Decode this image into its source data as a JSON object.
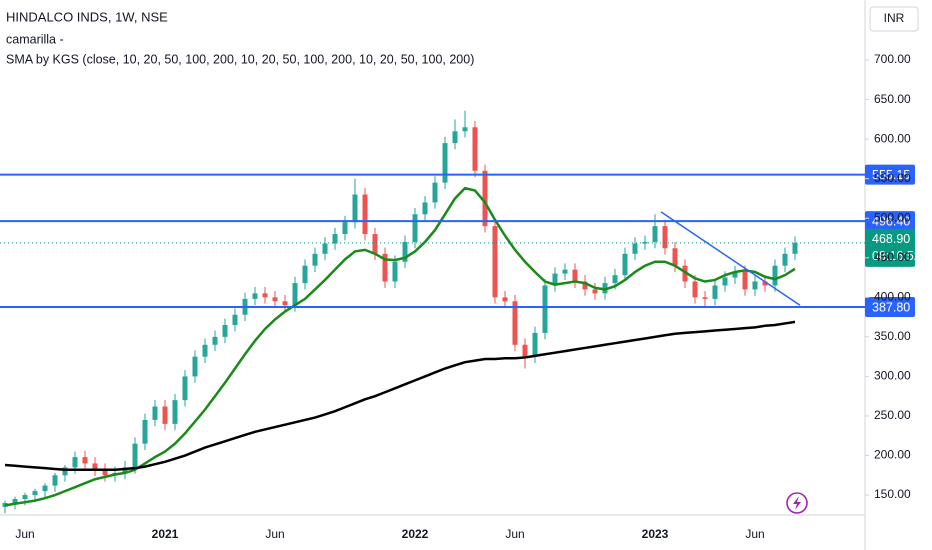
{
  "chart_data": {
    "type": "candlestick",
    "title": "HINDALCO INDS, 1W, NSE",
    "indicators": [
      "camarilla -",
      "SMA by KGS (close, 10, 20, 50, 100, 200, 10, 20, 50, 100, 200, 10, 20, 50, 100, 200)"
    ],
    "currency": "INR",
    "categories": [
      null,
      null,
      "Jun",
      null,
      null,
      null,
      null,
      null,
      null,
      null,
      null,
      null,
      null,
      null,
      null,
      null,
      "2021",
      null,
      null,
      null,
      null,
      null,
      null,
      null,
      null,
      null,
      null,
      "Jun",
      null,
      null,
      null,
      null,
      null,
      null,
      null,
      null,
      null,
      null,
      null,
      null,
      null,
      "2022",
      null,
      null,
      null,
      null,
      null,
      null,
      null,
      null,
      null,
      "Jun",
      null,
      null,
      null,
      null,
      null,
      null,
      null,
      null,
      null,
      null,
      null,
      null,
      null,
      "2023",
      null,
      null,
      null,
      null,
      null,
      null,
      null,
      null,
      null,
      "Jun",
      null,
      null,
      null,
      null
    ],
    "open": [
      135,
      140,
      145,
      150,
      155,
      162,
      175,
      185,
      198,
      190,
      182,
      175,
      178,
      185,
      215,
      245,
      262,
      240,
      270,
      300,
      325,
      340,
      350,
      365,
      378,
      398,
      405,
      400,
      395,
      390,
      418,
      440,
      455,
      468,
      480,
      495,
      530,
      480,
      455,
      420,
      445,
      470,
      505,
      520,
      545,
      595,
      610,
      615,
      560,
      490,
      400,
      395,
      340,
      325,
      355,
      415,
      430,
      435,
      420,
      410,
      405,
      418,
      428,
      455,
      468,
      470,
      490,
      462,
      440,
      420,
      400,
      398,
      415,
      425,
      432,
      410,
      420,
      415,
      440,
      455
    ],
    "high": [
      143,
      148,
      153,
      158,
      165,
      178,
      188,
      205,
      206,
      198,
      190,
      186,
      193,
      223,
      253,
      270,
      270,
      278,
      308,
      333,
      348,
      358,
      373,
      386,
      406,
      413,
      413,
      408,
      403,
      426,
      448,
      463,
      476,
      488,
      503,
      550,
      538,
      488,
      463,
      453,
      478,
      513,
      528,
      553,
      603,
      625,
      636,
      623,
      568,
      498,
      408,
      403,
      348,
      363,
      423,
      438,
      443,
      443,
      428,
      418,
      426,
      436,
      463,
      476,
      478,
      505,
      498,
      470,
      448,
      428,
      408,
      423,
      433,
      440,
      440,
      428,
      428,
      448,
      463,
      477
    ],
    "low": [
      127,
      132,
      137,
      142,
      147,
      154,
      167,
      177,
      182,
      174,
      167,
      167,
      170,
      177,
      207,
      237,
      232,
      232,
      262,
      292,
      317,
      332,
      342,
      357,
      370,
      390,
      392,
      387,
      382,
      382,
      410,
      432,
      447,
      460,
      472,
      487,
      472,
      447,
      412,
      412,
      437,
      462,
      497,
      512,
      537,
      587,
      602,
      552,
      482,
      392,
      387,
      332,
      310,
      317,
      347,
      407,
      422,
      412,
      402,
      397,
      397,
      410,
      420,
      447,
      460,
      462,
      454,
      432,
      412,
      392,
      388,
      390,
      407,
      417,
      402,
      402,
      407,
      407,
      432,
      447
    ],
    "close": [
      140,
      145,
      150,
      155,
      162,
      175,
      185,
      198,
      190,
      182,
      175,
      178,
      185,
      215,
      245,
      262,
      240,
      270,
      300,
      325,
      340,
      350,
      365,
      378,
      398,
      405,
      400,
      395,
      390,
      418,
      440,
      455,
      468,
      480,
      495,
      530,
      480,
      455,
      420,
      445,
      470,
      505,
      520,
      545,
      595,
      610,
      615,
      560,
      490,
      400,
      395,
      340,
      325,
      355,
      415,
      430,
      435,
      420,
      410,
      405,
      418,
      428,
      455,
      468,
      470,
      490,
      462,
      440,
      420,
      400,
      398,
      415,
      425,
      432,
      410,
      420,
      415,
      440,
      455,
      468.9
    ],
    "up_color": "#26a69a",
    "down_color": "#ef5350",
    "series": [
      {
        "color": "#1a8a1a",
        "values": [
          137,
          139,
          141,
          143,
          146,
          150,
          155,
          160,
          165,
          170,
          173,
          176,
          178,
          182,
          190,
          198,
          205,
          215,
          228,
          243,
          258,
          275,
          292,
          310,
          328,
          345,
          360,
          372,
          382,
          390,
          398,
          410,
          422,
          435,
          448,
          458,
          460,
          455,
          448,
          447,
          450,
          458,
          470,
          485,
          505,
          525,
          538,
          535,
          520,
          498,
          478,
          460,
          445,
          432,
          420,
          416,
          418,
          420,
          418,
          412,
          410,
          414,
          422,
          432,
          440,
          445,
          445,
          440,
          432,
          424,
          420,
          422,
          428,
          432,
          434,
          432,
          426,
          423,
          428,
          436
        ]
      },
      {
        "color": "#000000",
        "values": [
          188,
          187,
          186,
          185,
          184,
          183,
          182,
          182,
          182,
          182,
          182,
          182,
          183,
          184,
          186,
          189,
          192,
          196,
          200,
          205,
          210,
          214,
          218,
          222,
          226,
          230,
          233,
          236,
          239,
          242,
          245,
          248,
          252,
          256,
          261,
          266,
          271,
          275,
          280,
          285,
          290,
          295,
          300,
          305,
          310,
          314,
          318,
          320,
          322,
          322,
          323,
          323,
          324,
          326,
          328,
          330,
          332,
          334,
          336,
          338,
          340,
          342,
          344,
          346,
          348,
          350,
          352,
          354,
          355,
          356,
          357,
          358,
          359,
          360,
          361,
          362,
          364,
          365,
          367,
          369
        ]
      }
    ],
    "levels": [
      555.15,
      {
        "value": 496.4,
        "label": "496.40"
      },
      {
        "value": 387.8,
        "label": "387.80"
      }
    ],
    "level_color": "#2962ff",
    "trendline": {
      "x": [
        65.6,
        79.5
      ],
      "values": [
        508,
        390
      ],
      "color": "#2962ff"
    },
    "last_price": {
      "value": 468.9,
      "label": "468.90"
    },
    "countdown": "08:16:52",
    "last_color": "#089981",
    "ylim": [
      124.8,
      775.9
    ],
    "yticks": [
      {
        "value": 150,
        "label": "150.00"
      },
      {
        "value": 200,
        "label": "200.00"
      },
      {
        "value": 250,
        "label": "250.00"
      },
      {
        "value": 300,
        "label": "300.00"
      },
      {
        "value": 350,
        "label": "350.00"
      },
      {
        "value": 400,
        "label": "400.00"
      },
      {
        "value": 450,
        "label": "450.00"
      },
      {
        "value": 500,
        "label": "500.00"
      },
      {
        "value": 550,
        "label": "550.00"
      },
      {
        "value": 600,
        "label": "600.00"
      },
      {
        "value": 650,
        "label": "650.00"
      },
      {
        "value": 700,
        "label": "700.00"
      }
    ]
  }
}
